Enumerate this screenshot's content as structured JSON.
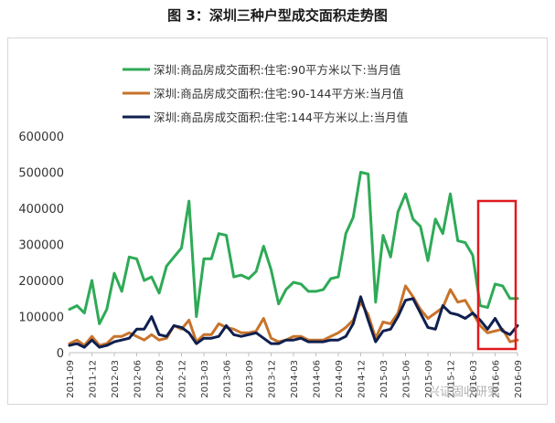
{
  "page": {
    "title": "图 3：深圳三种户型成交面积走势图",
    "watermark": "兴证固收研究"
  },
  "chart_data": {
    "type": "line",
    "title": "图 3：深圳三种户型成交面积走势图",
    "xlabel": "",
    "ylabel": "",
    "ylim": [
      0,
      600000
    ],
    "yticks": [
      0,
      100000,
      200000,
      300000,
      400000,
      500000,
      600000
    ],
    "ytick_labels": [
      "0",
      "100000",
      "200000",
      "300000",
      "400000",
      "500000",
      "600000"
    ],
    "xtick_labels": [
      "2011-09",
      "2011-12",
      "2012-03",
      "2012-06",
      "2012-09",
      "2012-12",
      "2013-03",
      "2013-06",
      "2013-09",
      "2013-12",
      "2014-03",
      "2014-06",
      "2014-09",
      "2014-12",
      "2015-03",
      "2015-06",
      "2015-09",
      "2015-12",
      "2016-03",
      "2016-06",
      "2016-09"
    ],
    "x": [
      "2011-09",
      "2011-10",
      "2011-11",
      "2011-12",
      "2012-01",
      "2012-02",
      "2012-03",
      "2012-04",
      "2012-05",
      "2012-06",
      "2012-07",
      "2012-08",
      "2012-09",
      "2012-10",
      "2012-11",
      "2012-12",
      "2013-01",
      "2013-02",
      "2013-03",
      "2013-04",
      "2013-05",
      "2013-06",
      "2013-07",
      "2013-08",
      "2013-09",
      "2013-10",
      "2013-11",
      "2013-12",
      "2014-01",
      "2014-02",
      "2014-03",
      "2014-04",
      "2014-05",
      "2014-06",
      "2014-07",
      "2014-08",
      "2014-09",
      "2014-10",
      "2014-11",
      "2014-12",
      "2015-01",
      "2015-02",
      "2015-03",
      "2015-04",
      "2015-05",
      "2015-06",
      "2015-07",
      "2015-08",
      "2015-09",
      "2015-10",
      "2015-11",
      "2015-12",
      "2016-01",
      "2016-02",
      "2016-03",
      "2016-04",
      "2016-05",
      "2016-06",
      "2016-07",
      "2016-08",
      "2016-09"
    ],
    "grid": false,
    "legend_position": "top-left",
    "series": [
      {
        "name": "深圳:商品房成交面积:住宅:90平方米以下:当月值",
        "color": "#2eaa56",
        "values": [
          120000,
          130000,
          110000,
          200000,
          80000,
          120000,
          220000,
          170000,
          265000,
          260000,
          200000,
          210000,
          165000,
          240000,
          265000,
          290000,
          420000,
          100000,
          260000,
          260000,
          330000,
          325000,
          210000,
          215000,
          205000,
          225000,
          295000,
          230000,
          135000,
          175000,
          195000,
          190000,
          170000,
          170000,
          175000,
          205000,
          210000,
          330000,
          375000,
          500000,
          495000,
          140000,
          325000,
          265000,
          390000,
          440000,
          370000,
          350000,
          255000,
          370000,
          330000,
          440000,
          310000,
          305000,
          270000,
          130000,
          125000,
          190000,
          185000,
          150000,
          150000
        ]
      },
      {
        "name": "深圳:商品房成交面积:住宅:90-144平方米:当月值",
        "color": "#c8732a",
        "values": [
          25000,
          35000,
          20000,
          45000,
          20000,
          25000,
          45000,
          45000,
          55000,
          45000,
          35000,
          50000,
          35000,
          40000,
          75000,
          65000,
          90000,
          30000,
          50000,
          50000,
          80000,
          70000,
          65000,
          55000,
          55000,
          60000,
          95000,
          40000,
          30000,
          35000,
          45000,
          45000,
          35000,
          35000,
          35000,
          45000,
          55000,
          70000,
          90000,
          140000,
          105000,
          40000,
          85000,
          80000,
          110000,
          185000,
          155000,
          120000,
          95000,
          110000,
          125000,
          175000,
          140000,
          145000,
          110000,
          75000,
          55000,
          60000,
          65000,
          30000,
          35000
        ]
      },
      {
        "name": "深圳:商品房成交面积:住宅:144平方米以上:当月值",
        "color": "#0f1f4f",
        "values": [
          20000,
          25000,
          15000,
          35000,
          15000,
          20000,
          30000,
          35000,
          40000,
          65000,
          65000,
          100000,
          50000,
          45000,
          75000,
          70000,
          55000,
          25000,
          40000,
          40000,
          45000,
          75000,
          50000,
          45000,
          50000,
          55000,
          40000,
          25000,
          25000,
          35000,
          35000,
          40000,
          30000,
          30000,
          30000,
          35000,
          35000,
          45000,
          80000,
          155000,
          90000,
          30000,
          60000,
          65000,
          100000,
          145000,
          150000,
          110000,
          70000,
          65000,
          130000,
          110000,
          105000,
          95000,
          110000,
          90000,
          65000,
          95000,
          60000,
          50000,
          75000
        ]
      }
    ]
  }
}
